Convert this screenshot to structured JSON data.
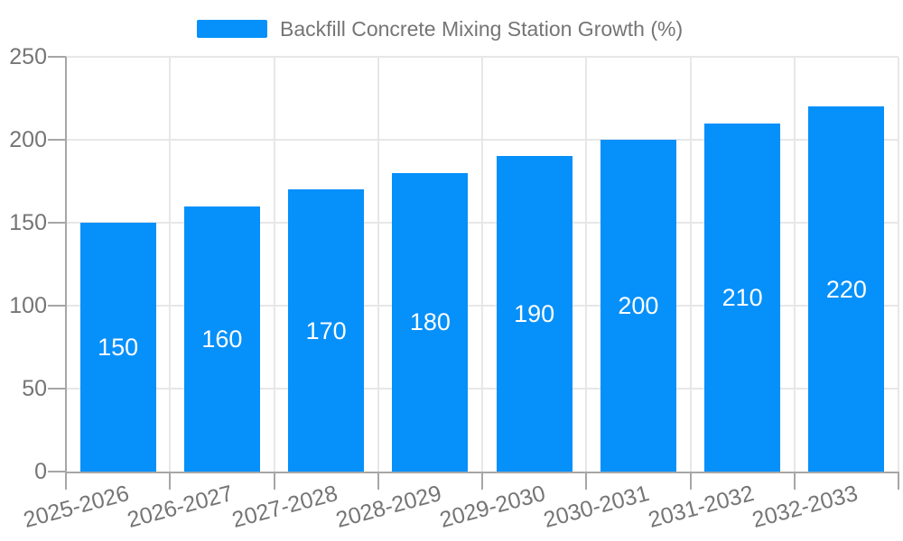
{
  "legend": {
    "label": "Backfill Concrete Mixing Station Growth (%)"
  },
  "chart_data": {
    "type": "bar",
    "title": "",
    "categories": [
      "2025-2026",
      "2026-2027",
      "2027-2028",
      "2028-2029",
      "2029-2030",
      "2030-2031",
      "2031-2032",
      "2032-2033"
    ],
    "series": [
      {
        "name": "Backfill Concrete Mixing Station Growth (%)",
        "values": [
          150,
          160,
          170,
          180,
          190,
          200,
          210,
          220
        ]
      }
    ],
    "values": [
      150,
      160,
      170,
      180,
      190,
      200,
      210,
      220
    ],
    "value_labels": [
      "150",
      "160",
      "170",
      "180",
      "190",
      "200",
      "210",
      "220"
    ],
    "xlabel": "",
    "ylabel": "",
    "ylim": [
      0,
      250
    ],
    "yticks": [
      0,
      50,
      100,
      150,
      200,
      250
    ],
    "grid": true,
    "legend_position": "top-center",
    "x_label_rotation_deg": -15,
    "colors": {
      "bar": "#0690fa",
      "value_label": "#ffffff",
      "axis_text": "#757575",
      "legend_text": "#757575",
      "grid_line": "#e7e7e7",
      "axis_line": "#a6a6a6",
      "tick": "#a6a6a6",
      "background": "#ffffff"
    }
  }
}
